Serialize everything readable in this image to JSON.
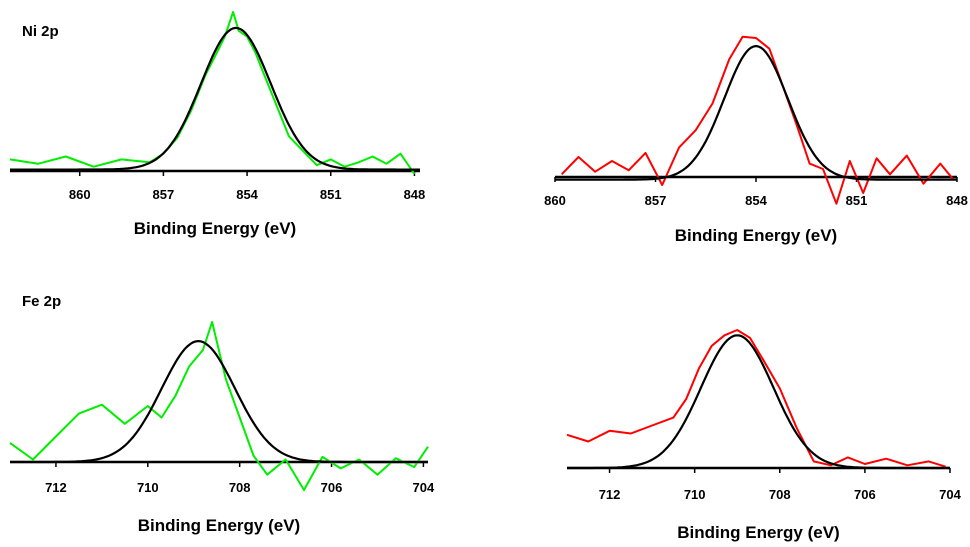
{
  "row_labels": {
    "top": "Ni 2p",
    "bottom": "Fe 2p"
  },
  "colors": {
    "green_trace": "#00ee00",
    "red_trace": "#ff0000",
    "fit": "#000000",
    "axis": "#000000"
  },
  "chart_data": [
    {
      "type": "line",
      "panel": "Ni 2p (green)",
      "xlabel": "Binding Energy (eV)",
      "xticks": [
        860,
        857,
        854,
        851,
        848
      ],
      "xlim": [
        862.5,
        847.8
      ],
      "ylim": [
        -0.05,
        1.1
      ],
      "grid": false,
      "series": [
        {
          "kind": "data",
          "color": "#00ee00",
          "x": [
            862.5,
            861.5,
            860.5,
            859.5,
            858.5,
            857.5,
            857.0,
            856.5,
            856.0,
            855.5,
            855.0,
            854.8,
            854.5,
            854.3,
            854.0,
            853.7,
            853.5,
            853.0,
            852.5,
            852.0,
            851.5,
            851.0,
            850.5,
            850.0,
            849.5,
            849.0,
            848.5,
            848.0
          ],
          "y": [
            0.08,
            0.05,
            0.1,
            0.03,
            0.08,
            0.06,
            0.12,
            0.23,
            0.42,
            0.66,
            0.85,
            0.93,
            1.1,
            0.97,
            0.93,
            0.82,
            0.72,
            0.48,
            0.24,
            0.14,
            0.04,
            0.08,
            0.03,
            0.06,
            0.1,
            0.05,
            0.12,
            -0.02
          ]
        },
        {
          "kind": "fit",
          "color": "#000000",
          "peak": {
            "center": 854.4,
            "height": 0.98,
            "baseline": 0.01,
            "sigma": 1.25
          }
        }
      ]
    },
    {
      "type": "line",
      "panel": "Ni 2p (red)",
      "xlabel": "Binding Energy (eV)",
      "xticks": [
        860,
        857,
        854,
        851,
        848
      ],
      "xlim": [
        860.0,
        848.0
      ],
      "ylim": [
        -0.25,
        1.1
      ],
      "grid": false,
      "series": [
        {
          "kind": "data",
          "color": "#ff0000",
          "x": [
            859.8,
            859.3,
            858.8,
            858.3,
            857.8,
            857.3,
            856.8,
            856.3,
            855.8,
            855.3,
            854.8,
            854.4,
            854.0,
            853.6,
            853.2,
            852.8,
            852.4,
            852.0,
            851.6,
            851.2,
            850.8,
            850.4,
            850.0,
            849.5,
            849.0,
            848.5,
            848.1
          ],
          "y": [
            0.02,
            0.15,
            0.04,
            0.12,
            0.05,
            0.18,
            -0.06,
            0.22,
            0.35,
            0.55,
            0.88,
            1.05,
            1.04,
            0.96,
            0.68,
            0.4,
            0.1,
            0.06,
            -0.2,
            0.12,
            -0.12,
            0.14,
            0.02,
            0.16,
            -0.05,
            0.1,
            -0.02
          ]
        },
        {
          "kind": "fit",
          "color": "#000000",
          "peak": {
            "center": 854.0,
            "height": 1.0,
            "baseline": -0.02,
            "sigma": 0.95
          }
        }
      ]
    },
    {
      "type": "line",
      "panel": "Fe 2p (green)",
      "xlabel": "Binding Energy (eV)",
      "xticks": [
        712,
        710,
        708,
        706,
        704
      ],
      "xlim": [
        713.0,
        703.9
      ],
      "ylim": [
        -0.25,
        1.1
      ],
      "grid": false,
      "series": [
        {
          "kind": "data",
          "color": "#00ee00",
          "x": [
            713.0,
            712.5,
            712.0,
            711.5,
            711.0,
            710.5,
            710.0,
            709.7,
            709.4,
            709.1,
            708.8,
            708.6,
            708.3,
            708.0,
            707.7,
            707.4,
            707.0,
            706.6,
            706.2,
            705.8,
            705.4,
            705.0,
            704.6,
            704.2,
            703.9
          ],
          "y": [
            0.15,
            0.02,
            0.2,
            0.38,
            0.45,
            0.3,
            0.44,
            0.35,
            0.52,
            0.75,
            0.88,
            1.1,
            0.65,
            0.35,
            0.05,
            -0.1,
            0.02,
            -0.22,
            0.04,
            -0.05,
            0.02,
            -0.1,
            0.03,
            -0.04,
            0.12
          ]
        },
        {
          "kind": "fit",
          "color": "#000000",
          "peak": {
            "center": 708.9,
            "height": 0.95,
            "baseline": 0.0,
            "sigma": 0.8
          }
        }
      ]
    },
    {
      "type": "line",
      "panel": "Fe 2p (red)",
      "xlabel": "Binding Energy (eV)",
      "xticks": [
        712,
        710,
        708,
        706,
        704
      ],
      "xlim": [
        713.0,
        704.0
      ],
      "ylim": [
        -0.1,
        1.1
      ],
      "grid": false,
      "series": [
        {
          "kind": "data",
          "color": "#ff0000",
          "x": [
            713.0,
            712.5,
            712.0,
            711.5,
            711.0,
            710.5,
            710.2,
            709.9,
            709.6,
            709.3,
            709.0,
            708.7,
            708.4,
            708.0,
            707.6,
            707.2,
            706.8,
            706.4,
            706.0,
            705.5,
            705.0,
            704.5,
            704.1
          ],
          "y": [
            0.25,
            0.2,
            0.28,
            0.26,
            0.32,
            0.38,
            0.52,
            0.75,
            0.92,
            1.0,
            1.04,
            0.98,
            0.82,
            0.6,
            0.3,
            0.05,
            0.02,
            0.08,
            0.03,
            0.07,
            0.02,
            0.05,
            0.01
          ]
        },
        {
          "kind": "fit",
          "color": "#000000",
          "peak": {
            "center": 709.0,
            "height": 1.0,
            "baseline": 0.0,
            "sigma": 0.85
          }
        }
      ]
    }
  ]
}
